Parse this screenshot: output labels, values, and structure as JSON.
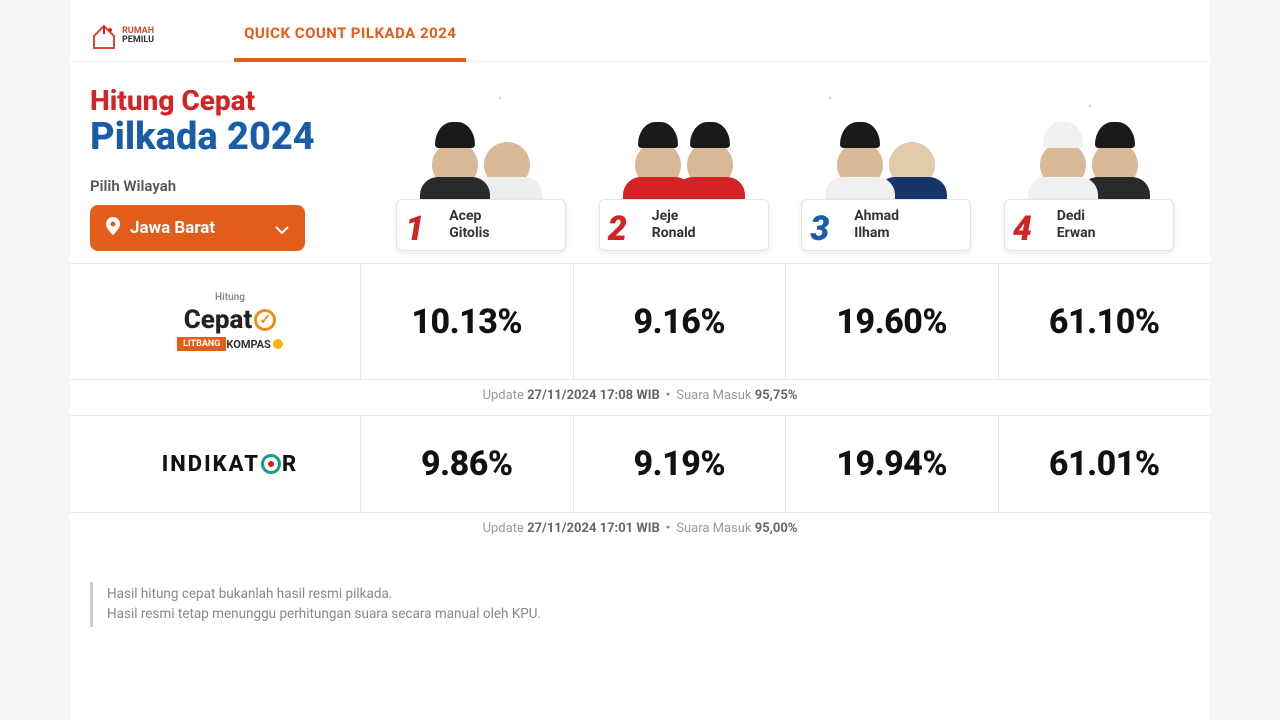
{
  "colors": {
    "accent_orange": "#e25c1a",
    "title_red": "#d22424",
    "title_blue": "#1a5ca8",
    "text_dark": "#111",
    "text_muted": "#888"
  },
  "header": {
    "logo_line1": "RUMAH",
    "logo_line2": "PEMILU",
    "tab_label": "QUICK COUNT PILKADA 2024"
  },
  "hero": {
    "title_line1": "Hitung Cepat",
    "title_line2": "Pilkada 2024",
    "region_field_label": "Pilih Wilayah",
    "region_selected": "Jawa Barat"
  },
  "candidates": [
    {
      "number": "1",
      "number_color": "red",
      "name_line1": "Acep",
      "name_line2": "Gitolis",
      "shirt1": "#2a2a2a",
      "shirt2": "#eeeeee",
      "hat2": false
    },
    {
      "number": "2",
      "number_color": "red",
      "name_line1": "Jeje",
      "name_line2": "Ronald",
      "shirt1": "#d22424",
      "shirt2": "#d22424",
      "hat2": true
    },
    {
      "number": "3",
      "number_color": "blue",
      "name_line1": "Ahmad",
      "name_line2": "Ilham",
      "shirt1": "#f0f0f0",
      "shirt2": "#15356b",
      "hat2": false,
      "bald2": true
    },
    {
      "number": "4",
      "number_color": "red",
      "name_line1": "Dedi",
      "name_line2": "Erwan",
      "shirt1": "#f0f0f0",
      "shirt2": "#2a2a2a",
      "hat1_white": true,
      "hat2": true
    }
  ],
  "surveys": [
    {
      "id": "litbang_kompas",
      "logo_small": "Hitung",
      "logo_main": "Cepat",
      "logo_badge": "LITBANG",
      "logo_sub": "KOMPAS",
      "results": [
        "10.13%",
        "9.16%",
        "19.60%",
        "61.10%"
      ],
      "update_label": "Update",
      "update_time": "27/11/2024 17:08 WIB",
      "votes_in_label": "Suara Masuk",
      "votes_in_value": "95,75%"
    },
    {
      "id": "indikator",
      "logo_text_a": "INDIKAT",
      "logo_text_b": "R",
      "results": [
        "9.86%",
        "9.19%",
        "19.94%",
        "61.01%"
      ],
      "update_label": "Update",
      "update_time": "27/11/2024 17:01 WIB",
      "votes_in_label": "Suara Masuk",
      "votes_in_value": "95,00%"
    }
  ],
  "disclaimer": {
    "line1": "Hasil hitung cepat bukanlah hasil resmi pilkada.",
    "line2": "Hasil resmi tetap menunggu perhitungan suara secara manual oleh KPU."
  }
}
